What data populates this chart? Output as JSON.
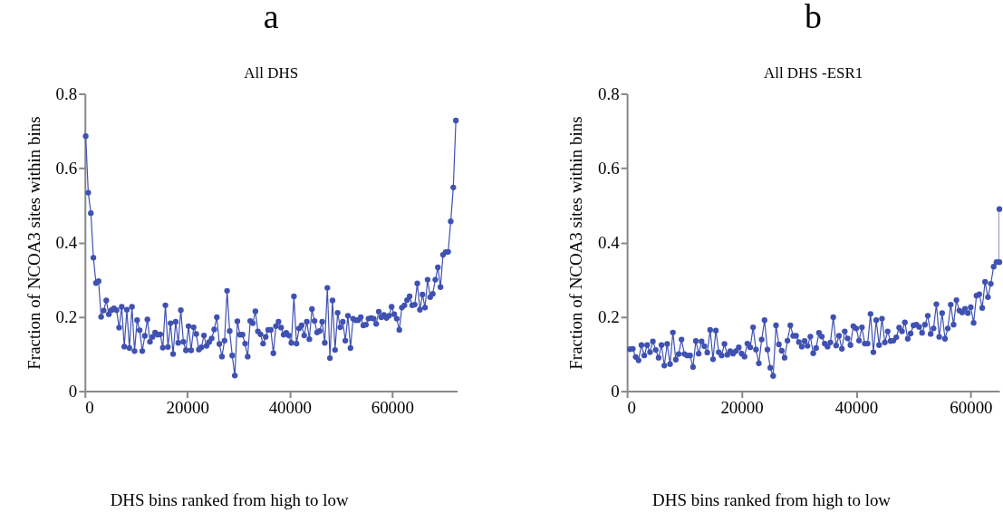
{
  "chart_data": [
    {
      "type": "line",
      "title": "a",
      "subtitle": "All DHS",
      "ylabel": "Fraction of NCOA3 sites within bins",
      "marker": "circle",
      "grid": false,
      "x": [
        150,
        652,
        1154,
        1656,
        2158,
        2660,
        3162,
        3664,
        4166,
        4668,
        5170,
        5672,
        6174,
        6676,
        7178,
        7680,
        8182,
        8684,
        9186,
        9688,
        10190,
        10692,
        11194,
        11696,
        12198,
        12700,
        13202,
        13704,
        14206,
        14708,
        15210,
        15712,
        16214,
        16716,
        17218,
        17720,
        18222,
        18724,
        19226,
        19728,
        20230,
        20732,
        21234,
        21736,
        22238,
        22740,
        23242,
        23744,
        24246,
        24748,
        25250,
        25752,
        26254,
        26756,
        27258,
        27760,
        28262,
        28764,
        29266,
        29768,
        30270,
        30772,
        31274,
        31776,
        32278,
        32780,
        33282,
        33784,
        34286,
        34788,
        35290,
        35792,
        36294,
        36796,
        37298,
        37800,
        38302,
        38804,
        39306,
        39808,
        40310,
        40812,
        41314,
        41816,
        42318,
        42820,
        43322,
        43824,
        44326,
        44828,
        45330,
        45832,
        46334,
        46836,
        47338,
        47840,
        48342,
        48844,
        49346,
        49848,
        50350,
        50852,
        51354,
        51856,
        52358,
        52860,
        53362,
        53864,
        54366,
        54868,
        55370,
        55872,
        56374,
        56876,
        57378,
        57880,
        58382,
        58884,
        59386,
        59888,
        60390,
        60892,
        61394,
        61896,
        62398,
        62900,
        63402,
        63904,
        64406,
        64908,
        65410,
        65912,
        66414,
        66916,
        67418,
        67920,
        68422,
        68924,
        69426,
        69928,
        70430,
        70932,
        71434,
        71936,
        72438
      ],
      "series": [
        {
          "color": "#3f51b1",
          "values": [
            0.686,
            0.534,
            0.479,
            0.359,
            0.291,
            0.296,
            0.2,
            0.217,
            0.244,
            0.207,
            0.218,
            0.223,
            0.218,
            0.171,
            0.227,
            0.12,
            0.219,
            0.116,
            0.227,
            0.108,
            0.191,
            0.164,
            0.108,
            0.149,
            0.193,
            0.133,
            0.146,
            0.158,
            0.152,
            0.153,
            0.117,
            0.231,
            0.119,
            0.183,
            0.1,
            0.187,
            0.13,
            0.218,
            0.133,
            0.11,
            0.175,
            0.11,
            0.172,
            0.154,
            0.112,
            0.118,
            0.15,
            0.122,
            0.132,
            0.142,
            0.166,
            0.199,
            0.127,
            0.093,
            0.136,
            0.27,
            0.162,
            0.096,
            0.042,
            0.188,
            0.152,
            0.152,
            0.128,
            0.093,
            0.189,
            0.183,
            0.215,
            0.161,
            0.153,
            0.128,
            0.146,
            0.165,
            0.165,
            0.102,
            0.175,
            0.187,
            0.171,
            0.152,
            0.157,
            0.15,
            0.13,
            0.255,
            0.128,
            0.169,
            0.177,
            0.15,
            0.187,
            0.14,
            0.221,
            0.189,
            0.158,
            0.162,
            0.187,
            0.13,
            0.278,
            0.089,
            0.244,
            0.111,
            0.211,
            0.172,
            0.187,
            0.136,
            0.203,
            0.116,
            0.195,
            0.191,
            0.191,
            0.199,
            0.177,
            0.179,
            0.195,
            0.197,
            0.195,
            0.181,
            0.214,
            0.199,
            0.205,
            0.197,
            0.203,
            0.227,
            0.207,
            0.195,
            0.165,
            0.225,
            0.231,
            0.245,
            0.255,
            0.231,
            0.233,
            0.29,
            0.219,
            0.26,
            0.225,
            0.3,
            0.253,
            0.262,
            0.3,
            0.333,
            0.28,
            0.367,
            0.374,
            0.375,
            0.457,
            0.548,
            0.728
          ]
        }
      ],
      "xlim": [
        0,
        72700
      ],
      "xticks": [
        0,
        20000,
        40000,
        60000
      ],
      "ylim": [
        0,
        0.8
      ],
      "yticks": [
        0,
        0.2,
        0.4,
        0.6,
        0.8
      ],
      "annotations": [
        "DHS bins ranked from high to low"
      ]
    },
    {
      "type": "line",
      "title": "b",
      "subtitle": "All DHS -ESR1",
      "ylabel": "Fraction of NCOA3 sites within bins",
      "marker": "circle",
      "grid": false,
      "x": [
        500,
        1000,
        1500,
        2000,
        2500,
        3000,
        3500,
        4000,
        4500,
        5000,
        5500,
        6000,
        6500,
        7000,
        7500,
        8000,
        8500,
        9000,
        9500,
        10000,
        10500,
        11000,
        11500,
        12000,
        12500,
        13000,
        13500,
        14000,
        14500,
        15000,
        15500,
        16000,
        16500,
        17000,
        17500,
        18000,
        18500,
        19000,
        19500,
        20000,
        20500,
        21000,
        21500,
        22000,
        22500,
        23000,
        23500,
        24000,
        24500,
        25000,
        25500,
        26000,
        26500,
        27000,
        27500,
        28000,
        28500,
        29000,
        29500,
        30000,
        30500,
        31000,
        31500,
        32000,
        32500,
        33000,
        33500,
        34000,
        34500,
        35000,
        35500,
        36000,
        36500,
        37000,
        37500,
        38000,
        38500,
        39000,
        39500,
        40000,
        40500,
        41000,
        41500,
        42000,
        42500,
        43000,
        43500,
        44000,
        44500,
        45000,
        45500,
        46000,
        46500,
        47000,
        47500,
        48000,
        48500,
        49000,
        49500,
        50000,
        50500,
        51000,
        51500,
        52000,
        52500,
        53000,
        53500,
        54000,
        54500,
        55000,
        55500,
        56000,
        56500,
        57000,
        57500,
        58000,
        58500,
        59000,
        59500,
        60000,
        60500,
        61000,
        61500,
        62000,
        62500,
        63000,
        63500,
        64000,
        64500,
        65000,
        65000
      ],
      "series": [
        {
          "color": "#3f51b1",
          "values": [
            0.113,
            0.114,
            0.092,
            0.083,
            0.124,
            0.096,
            0.124,
            0.105,
            0.134,
            0.111,
            0.09,
            0.124,
            0.069,
            0.127,
            0.073,
            0.158,
            0.085,
            0.1,
            0.139,
            0.1,
            0.096,
            0.096,
            0.065,
            0.135,
            0.101,
            0.134,
            0.121,
            0.104,
            0.165,
            0.086,
            0.163,
            0.105,
            0.096,
            0.127,
            0.098,
            0.108,
            0.101,
            0.108,
            0.118,
            0.101,
            0.093,
            0.128,
            0.118,
            0.172,
            0.112,
            0.075,
            0.139,
            0.191,
            0.112,
            0.063,
            0.041,
            0.177,
            0.126,
            0.109,
            0.09,
            0.136,
            0.177,
            0.149,
            0.149,
            0.132,
            0.12,
            0.135,
            0.122,
            0.147,
            0.102,
            0.116,
            0.157,
            0.147,
            0.128,
            0.12,
            0.131,
            0.199,
            0.123,
            0.149,
            0.114,
            0.161,
            0.142,
            0.124,
            0.175,
            0.169,
            0.136,
            0.172,
            0.128,
            0.128,
            0.208,
            0.105,
            0.191,
            0.124,
            0.195,
            0.131,
            0.161,
            0.135,
            0.136,
            0.145,
            0.171,
            0.161,
            0.185,
            0.141,
            0.155,
            0.177,
            0.179,
            0.173,
            0.157,
            0.179,
            0.203,
            0.154,
            0.169,
            0.234,
            0.146,
            0.21,
            0.141,
            0.169,
            0.233,
            0.179,
            0.245,
            0.217,
            0.212,
            0.222,
            0.21,
            0.226,
            0.184,
            0.257,
            0.261,
            0.224,
            0.294,
            0.253,
            0.289,
            0.335,
            0.347,
            0.347,
            0.49
          ]
        }
      ],
      "xlim": [
        0,
        65000
      ],
      "xticks": [
        0,
        20000,
        40000,
        60000
      ],
      "ylim": [
        0,
        0.8
      ],
      "yticks": [
        0,
        0.2,
        0.4,
        0.6,
        0.8
      ],
      "annotations": [
        "DHS bins ranked from high to low"
      ]
    }
  ]
}
